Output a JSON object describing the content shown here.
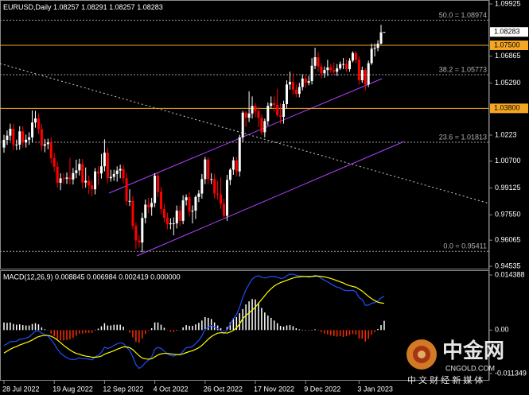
{
  "chart_data": {
    "type": "candlestick",
    "symbol": "EURUSD,Daily",
    "up_color": "#ffffff",
    "down_color": "#ff0000",
    "categories": [
      "28 Jul 2022",
      null,
      null,
      null,
      null,
      null,
      null,
      null,
      null,
      null,
      null,
      null,
      null,
      null,
      null,
      null,
      "19 Aug 2022",
      null,
      null,
      null,
      null,
      null,
      null,
      null,
      null,
      null,
      null,
      null,
      null,
      null,
      null,
      null,
      "12 Sep 2022",
      null,
      null,
      null,
      null,
      null,
      null,
      null,
      null,
      null,
      null,
      null,
      null,
      null,
      null,
      null,
      "4 Oct 2022",
      null,
      null,
      null,
      null,
      null,
      null,
      null,
      null,
      null,
      null,
      null,
      null,
      null,
      null,
      null,
      "26 Oct 2022",
      null,
      null,
      null,
      null,
      null,
      null,
      null,
      null,
      null,
      null,
      null,
      null,
      null,
      null,
      null,
      "17 Nov 2022",
      null,
      null,
      null,
      null,
      null,
      null,
      null,
      null,
      null,
      null,
      null,
      null,
      null,
      null,
      null,
      "9 Dec 2022",
      null,
      null,
      null,
      null,
      null,
      null,
      null,
      null,
      null,
      null,
      null,
      null,
      null,
      null,
      null,
      null,
      "3 Jan 2023",
      null,
      null,
      null,
      null,
      null,
      null,
      null,
      null
    ],
    "open": [
      1.015,
      1.0195,
      1.022,
      1.026,
      1.0165,
      1.0167,
      1.0245,
      1.018,
      1.0196,
      1.021,
      1.0297,
      1.0321,
      1.0258,
      1.016,
      1.017,
      1.018,
      1.0088,
      1.0038,
      0.9943,
      0.9969,
      0.9967,
      0.9974,
      0.9963,
      1.0,
      1.0016,
      1.0054,
      0.9945,
      0.9955,
      0.9928,
      0.9905,
      1.001,
      0.9998,
      1.004,
      1.012,
      0.997,
      0.9978,
      0.9995,
      1.0015,
      1.0025,
      0.997,
      0.9835,
      0.9837,
      0.969,
      0.9605,
      0.9593,
      0.9737,
      0.9815,
      0.98,
      0.9825,
      0.9985,
      0.989,
      0.979,
      0.9738,
      0.97,
      0.9705,
      0.9705,
      0.978,
      0.972,
      0.984,
      0.9858,
      0.9775,
      0.978,
      0.986,
      0.988,
      0.9965,
      1.008,
      0.9965,
      0.9965,
      0.988,
      0.9875,
      0.982,
      0.975,
      0.996,
      1.002,
      1.0075,
      1.001,
      1.021,
      1.0355,
      1.0325,
      1.035,
      1.0395,
      1.0365,
      1.0325,
      1.024,
      1.0305,
      1.0395,
      1.041,
      1.04,
      1.034,
      1.033,
      1.0405,
      1.052,
      1.0535,
      1.049,
      1.0465,
      1.0505,
      1.0555,
      1.053,
      1.054,
      1.063,
      1.068,
      1.0625,
      1.0585,
      1.0605,
      1.062,
      1.0605,
      1.0595,
      1.0615,
      1.064,
      1.064,
      1.061,
      1.066,
      1.0705,
      1.0665,
      1.0545,
      1.0605,
      1.052,
      1.0645,
      1.073,
      1.0735,
      1.076,
      1.08257
    ],
    "high": [
      1.0225,
      1.025,
      1.029,
      1.029,
      1.0197,
      1.0275,
      1.0275,
      1.0226,
      1.024,
      1.0368,
      1.0365,
      1.0351,
      1.0288,
      1.02,
      1.0202,
      1.021,
      1.0118,
      1.0068,
      0.9999,
      0.9999,
      1.0004,
      1.009,
      1.003,
      1.0079,
      1.0084,
      1.0084,
      1.0033,
      0.9985,
      0.9958,
      1.003,
      1.004,
      1.0113,
      1.0198,
      1.015,
      1.002,
      1.002,
      1.004,
      1.005,
      1.005,
      1.0,
      0.9905,
      0.9867,
      0.971,
      0.9635,
      0.9767,
      0.9845,
      0.9855,
      0.9855,
      1.0,
      0.9999,
      0.992,
      0.982,
      0.9768,
      0.9735,
      0.974,
      0.981,
      0.981,
      0.987,
      0.9875,
      0.9888,
      0.981,
      0.987,
      0.99,
      0.9995,
      1.0095,
      1.0093,
      1.0,
      0.9995,
      0.9955,
      0.9975,
      0.985,
      0.999,
      1.003,
      1.0095,
      1.0095,
      1.0225,
      1.0365,
      1.0365,
      1.048,
      1.045,
      1.041,
      1.039,
      1.0345,
      1.032,
      1.0415,
      1.045,
      1.045,
      1.0495,
      1.041,
      1.0425,
      1.0545,
      1.0595,
      1.0585,
      1.052,
      1.053,
      1.058,
      1.0575,
      1.057,
      1.0675,
      1.0736,
      1.071,
      1.0645,
      1.0625,
      1.0665,
      1.064,
      1.065,
      1.064,
      1.0655,
      1.0675,
      1.0665,
      1.0675,
      1.0715,
      1.0715,
      1.0685,
      1.0625,
      1.0615,
      1.066,
      1.076,
      1.076,
      1.078,
      1.087,
      1.08291
    ],
    "low": [
      1.012,
      1.0165,
      1.019,
      1.0135,
      1.0135,
      1.0137,
      1.015,
      1.015,
      1.0166,
      1.018,
      1.0267,
      1.0228,
      1.013,
      1.0122,
      1.014,
      1.0058,
      1.0008,
      0.9913,
      0.99,
      0.9937,
      0.9937,
      0.9933,
      0.9933,
      0.997,
      0.9986,
      0.9911,
      0.9915,
      0.9878,
      0.9865,
      0.9875,
      0.993,
      0.9968,
      1.001,
      0.994,
      0.995,
      0.9955,
      0.995,
      0.997,
      0.994,
      0.981,
      0.9807,
      0.967,
      0.9553,
      0.9563,
      0.9536,
      0.9705,
      0.9765,
      0.975,
      0.98,
      0.986,
      0.976,
      0.9708,
      0.967,
      0.967,
      0.9635,
      0.9675,
      0.969,
      0.97,
      0.981,
      0.9745,
      0.9705,
      0.973,
      0.983,
      0.985,
      0.9935,
      0.9935,
      0.9935,
      0.985,
      0.9845,
      0.979,
      0.973,
      0.972,
      0.993,
      0.999,
      0.998,
      0.998,
      1.018,
      1.027,
      1.03,
      1.032,
      1.033,
      1.027,
      1.0225,
      1.021,
      1.028,
      1.038,
      1.036,
      1.033,
      1.029,
      1.029,
      1.038,
      1.049,
      1.046,
      1.0445,
      1.0445,
      1.0485,
      1.05,
      1.0515,
      1.052,
      1.061,
      1.0595,
      1.0555,
      1.056,
      1.057,
      1.059,
      1.0575,
      1.057,
      1.0605,
      1.061,
      1.0595,
      1.0595,
      1.065,
      1.0645,
      1.052,
      1.053,
      1.0485,
      1.0505,
      1.0635,
      1.0685,
      1.0715,
      1.0755,
      1.08257
    ],
    "close": [
      1.0195,
      1.022,
      1.026,
      1.0165,
      1.0167,
      1.0245,
      1.018,
      1.0196,
      1.021,
      1.0297,
      1.0321,
      1.0258,
      1.016,
      1.017,
      1.018,
      1.0088,
      1.0038,
      0.9943,
      0.9969,
      0.9967,
      0.9974,
      0.9963,
      1.0,
      1.0016,
      1.0054,
      0.9945,
      0.9955,
      0.9928,
      0.9905,
      1.001,
      0.9998,
      1.004,
      1.012,
      0.997,
      0.9978,
      0.9995,
      1.0015,
      1.0025,
      0.997,
      0.9835,
      0.9837,
      0.969,
      0.9605,
      0.9593,
      0.9737,
      0.9815,
      0.98,
      0.9825,
      0.9985,
      0.989,
      0.979,
      0.9738,
      0.97,
      0.9705,
      0.9705,
      0.978,
      0.972,
      0.984,
      0.9858,
      0.9775,
      0.978,
      0.986,
      0.988,
      0.9965,
      1.008,
      0.9965,
      0.9965,
      0.988,
      0.9875,
      0.982,
      0.975,
      0.996,
      1.002,
      1.0075,
      1.001,
      1.021,
      1.0355,
      1.0325,
      1.035,
      1.0395,
      1.0365,
      1.0325,
      1.024,
      1.0305,
      1.0395,
      1.041,
      1.04,
      1.034,
      1.033,
      1.0405,
      1.052,
      1.0535,
      1.049,
      1.0465,
      1.0505,
      1.0555,
      1.053,
      1.054,
      1.063,
      1.068,
      1.0625,
      1.0585,
      1.0605,
      1.062,
      1.0605,
      1.0595,
      1.0615,
      1.064,
      1.064,
      1.061,
      1.066,
      1.0705,
      1.0665,
      1.0545,
      1.0605,
      1.052,
      1.0645,
      1.073,
      1.0735,
      1.076,
      1.0826,
      1.08283
    ],
    "ylim": [
      0.94535,
      1.09925
    ],
    "yticks": [
      1.09925,
      1.06865,
      {
        "value": 1.0529,
        "label": "1.05290"
      },
      1.0223,
      {
        "value": 1.007,
        "label": "1.00700"
      },
      0.99125,
      {
        "value": 0.9755,
        "label": "0.97550"
      },
      0.96065,
      0.94535
    ],
    "levels": [
      {
        "value": 1.075,
        "label": "1.07500"
      },
      {
        "value": 1.038,
        "label": "1.03800"
      }
    ],
    "level_color": "#f5a623",
    "fibonacci": [
      {
        "value": 1.08974,
        "label": "50.0 = 1.08974"
      },
      {
        "value": 1.05773,
        "label": "38.2 = 1.05773"
      },
      {
        "value": 1.01813,
        "label": "23.6 = 1.01813"
      },
      {
        "value": 0.95411,
        "label": "0.0 = 0.95411"
      }
    ],
    "macd": {
      "title": "MACD(12,26,9) 0.008845 0.006984 0.002419 0.000000",
      "ylim": [
        -0.011349,
        0.014388
      ],
      "yticks": [
        0.014388,
        {
          "value": 0,
          "label": "0.00"
        },
        -0.011349
      ],
      "main_color": "#1f4fff",
      "signal_color": "#ffff00",
      "up_color": "#ffffff",
      "down_color": "#ff2a00",
      "main": [
        -0.004,
        -0.0036,
        -0.003,
        -0.003,
        -0.0029,
        -0.0024,
        -0.0023,
        -0.0021,
        -0.0018,
        -0.001,
        -0.0003,
        -0.0002,
        -0.0008,
        -0.0012,
        -0.0015,
        -0.0025,
        -0.0036,
        -0.005,
        -0.006,
        -0.0067,
        -0.0072,
        -0.0076,
        -0.0077,
        -0.0076,
        -0.0072,
        -0.0075,
        -0.0075,
        -0.0076,
        -0.0078,
        -0.007,
        -0.0066,
        -0.0058,
        -0.0045,
        -0.0048,
        -0.0045,
        -0.004,
        -0.0036,
        -0.0033,
        -0.0035,
        -0.0045,
        -0.0053,
        -0.007,
        -0.009,
        -0.01,
        -0.0095,
        -0.0085,
        -0.0078,
        -0.007,
        -0.005,
        -0.0045,
        -0.0048,
        -0.0055,
        -0.0062,
        -0.0066,
        -0.0068,
        -0.0064,
        -0.0065,
        -0.0055,
        -0.0046,
        -0.0045,
        -0.0043,
        -0.0035,
        -0.0027,
        -0.0015,
        0.0002,
        0.0008,
        0.0012,
        0.0008,
        0.0004,
        -0.0002,
        -0.001,
        0.0,
        0.0015,
        0.003,
        0.004,
        0.006,
        0.0085,
        0.0105,
        0.012,
        0.0133,
        0.014,
        0.0142,
        0.0138,
        0.0136,
        0.0138,
        0.014,
        0.014,
        0.0138,
        0.0135,
        0.0136,
        0.0142,
        0.0146,
        0.0146,
        0.0143,
        0.0141,
        0.0141,
        0.014,
        0.0138,
        0.014,
        0.0143,
        0.014,
        0.0135,
        0.013,
        0.0126,
        0.0121,
        0.0116,
        0.0112,
        0.011,
        0.0105,
        0.0103,
        0.0103,
        0.0104,
        0.01,
        0.0085,
        0.008,
        0.0065,
        0.0065,
        0.007,
        0.0072,
        0.0076,
        0.0084,
        0.008845
      ],
      "signal": [
        -0.006,
        -0.0055,
        -0.005,
        -0.0046,
        -0.0043,
        -0.0039,
        -0.0036,
        -0.0033,
        -0.003,
        -0.0026,
        -0.0021,
        -0.0017,
        -0.0015,
        -0.0014,
        -0.0014,
        -0.0016,
        -0.002,
        -0.0026,
        -0.0033,
        -0.004,
        -0.0046,
        -0.0052,
        -0.0057,
        -0.0061,
        -0.0063,
        -0.0066,
        -0.0068,
        -0.0069,
        -0.0071,
        -0.0071,
        -0.007,
        -0.0068,
        -0.0063,
        -0.006,
        -0.0057,
        -0.0054,
        -0.005,
        -0.0047,
        -0.0044,
        -0.0044,
        -0.0046,
        -0.0051,
        -0.0059,
        -0.0067,
        -0.0073,
        -0.0075,
        -0.0076,
        -0.0075,
        -0.007,
        -0.0065,
        -0.0062,
        -0.0061,
        -0.0061,
        -0.0062,
        -0.0063,
        -0.0064,
        -0.0064,
        -0.0062,
        -0.0059,
        -0.0056,
        -0.0054,
        -0.005,
        -0.0046,
        -0.004,
        -0.0032,
        -0.0024,
        -0.0017,
        -0.0012,
        -0.0008,
        -0.0007,
        -0.0007,
        -0.0008,
        -0.0005,
        -0.0001,
        0.0006,
        0.0016,
        0.003,
        0.0038,
        0.0045,
        0.0052,
        0.006,
        0.007,
        0.008,
        0.009,
        0.01,
        0.0108,
        0.0115,
        0.012,
        0.0124,
        0.0127,
        0.013,
        0.0133,
        0.0136,
        0.0138,
        0.0139,
        0.014,
        0.014,
        0.014,
        0.014,
        0.0141,
        0.0141,
        0.014,
        0.0139,
        0.0137,
        0.0135,
        0.0132,
        0.0129,
        0.0126,
        0.0123,
        0.0119,
        0.0116,
        0.0114,
        0.0112,
        0.0107,
        0.0102,
        0.0095,
        0.0088,
        0.0082,
        0.0077,
        0.0073,
        0.0071,
        0.006984
      ],
      "histogram": [
        0.002,
        0.0019,
        0.002,
        0.0016,
        0.0014,
        0.0015,
        0.0013,
        0.0012,
        0.0012,
        0.0016,
        0.0018,
        0.0015,
        0.0007,
        0.0002,
        -0.0001,
        -0.0009,
        -0.0016,
        -0.0024,
        -0.0027,
        -0.0027,
        -0.0026,
        -0.0024,
        -0.002,
        -0.0015,
        -0.0009,
        -0.0009,
        -0.0007,
        -0.0007,
        -0.0007,
        0.0001,
        0.0004,
        0.001,
        0.0018,
        0.0012,
        0.0012,
        0.0014,
        0.0014,
        0.0014,
        0.0009,
        -0.0001,
        -0.0007,
        -0.0019,
        -0.0031,
        -0.0033,
        -0.0022,
        -0.001,
        -0.0002,
        0.0005,
        0.002,
        0.002,
        0.0014,
        0.0006,
        -0.0001,
        -0.0004,
        -0.0005,
        0.0,
        -0.0001,
        0.0007,
        0.0013,
        0.0011,
        0.0011,
        0.0015,
        0.0019,
        0.0025,
        0.0034,
        0.0032,
        0.0029,
        0.002,
        0.0012,
        0.0005,
        -0.0003,
        0.0008,
        0.002,
        0.0031,
        0.0034,
        0.0044,
        0.0055,
        0.0067,
        0.0075,
        0.0081,
        0.008,
        0.0072,
        0.0058,
        0.0046,
        0.0038,
        0.0032,
        0.0025,
        0.0018,
        0.0011,
        0.0009,
        0.0012,
        0.0013,
        0.001,
        0.0005,
        0.0002,
        0.0001,
        0.0,
        -0.0002,
        0.0,
        0.0002,
        -0.0001,
        -0.0005,
        -0.0009,
        -0.0011,
        -0.0014,
        -0.0016,
        -0.0017,
        -0.0016,
        -0.0018,
        -0.0016,
        -0.0013,
        -0.001,
        -0.0012,
        -0.0022,
        -0.0022,
        -0.003,
        -0.0023,
        -0.0012,
        -0.0005,
        0.0003,
        0.0013,
        0.002419
      ]
    },
    "watermark": {
      "name": "中金网",
      "site": "CNGOLD.COM",
      "tagline": "中 文 财 经 新 媒 体"
    }
  }
}
